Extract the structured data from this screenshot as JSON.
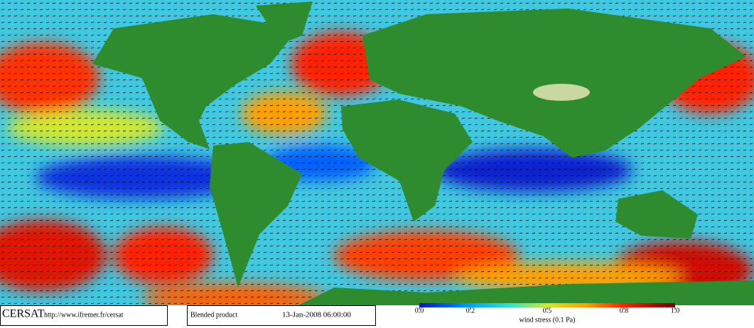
{
  "footer": {
    "logo": "CERSAT",
    "url": "http://www.ifremer.fr/cersat",
    "product": "Blended product",
    "date": "13-Jan-2008 06:00:00"
  },
  "colorbar": {
    "lim": [
      0,
      1
    ],
    "ticks": [
      {
        "value": 0,
        "label": "0.0"
      },
      0.2,
      0.5,
      0.8,
      {
        "value": 1,
        "label": "1.0"
      }
    ],
    "label": "wind stress (0.1 Pa)"
  }
}
